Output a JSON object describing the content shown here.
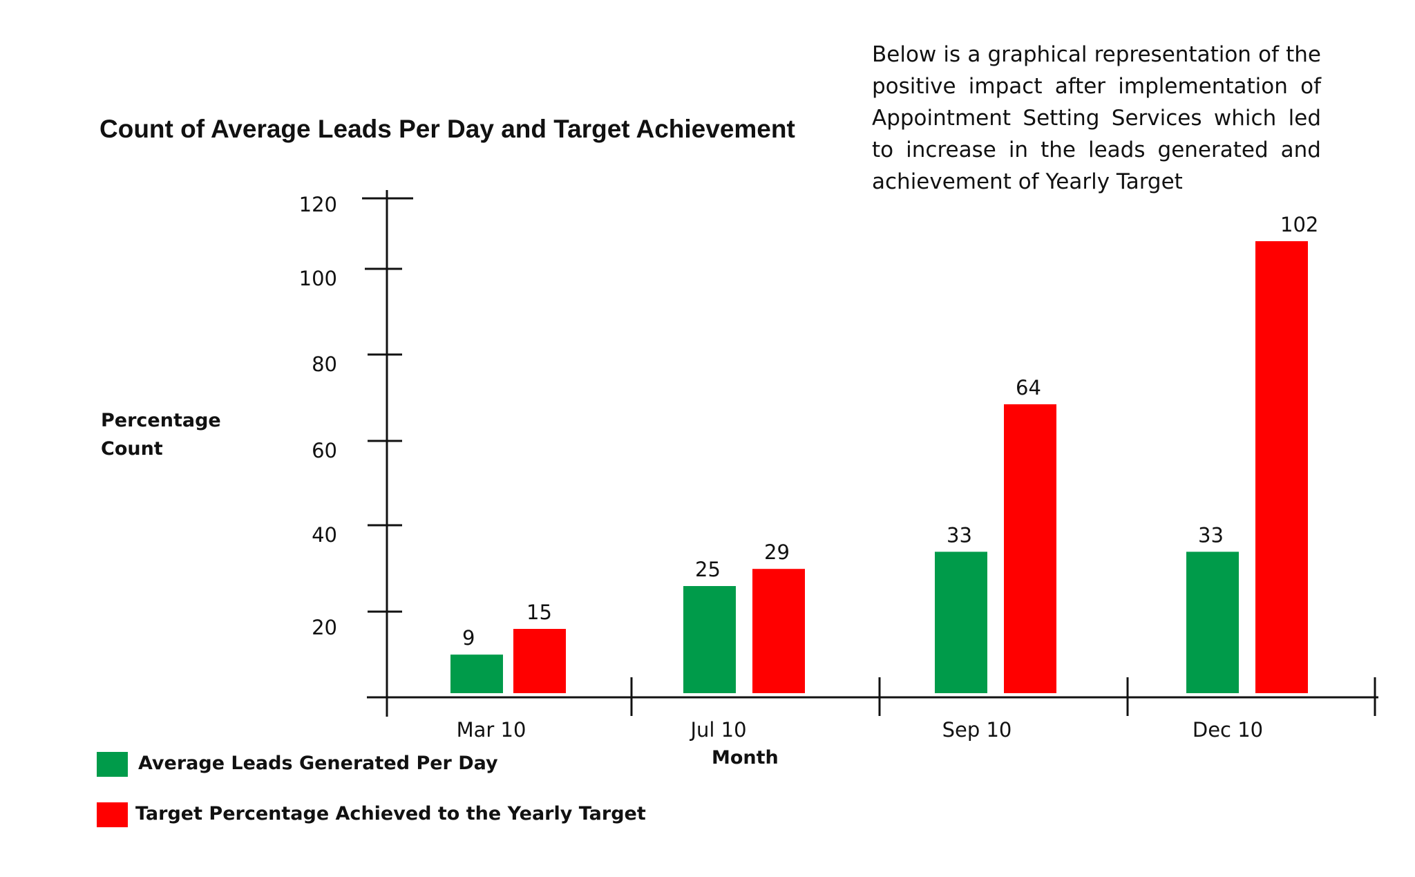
{
  "title": "Count of Average Leads Per Day and Target Achievement",
  "description": "Below is a graphical representation of the positive impact after implementation of Appointment Setting Services which led to increase in the leads generated and achievement of Yearly Target",
  "colors": {
    "green": "#009b4a",
    "red": "#ff0000"
  },
  "chart_data": {
    "type": "bar",
    "title": "Count of Average Leads Per Day and Target Achievement",
    "xlabel": "Month",
    "ylabel": "Percentage Count",
    "ylabel_lines": [
      "Percentage",
      "Count"
    ],
    "categories": [
      "Mar 10",
      "Jul 10",
      "Sep 10",
      "Dec 10"
    ],
    "series": [
      {
        "name": "Average Leads Generated Per Day",
        "values": [
          9,
          25,
          33,
          33
        ],
        "color": "#009b4a"
      },
      {
        "name": "Target Percentage Achieved to the Yearly Target",
        "values": [
          15,
          29,
          64,
          102
        ],
        "color": "#ff0000"
      }
    ],
    "y_ticks": [
      20,
      40,
      60,
      80,
      100,
      120
    ],
    "ylim": [
      0,
      120
    ],
    "grid": false,
    "legend_position": "bottom-left"
  }
}
